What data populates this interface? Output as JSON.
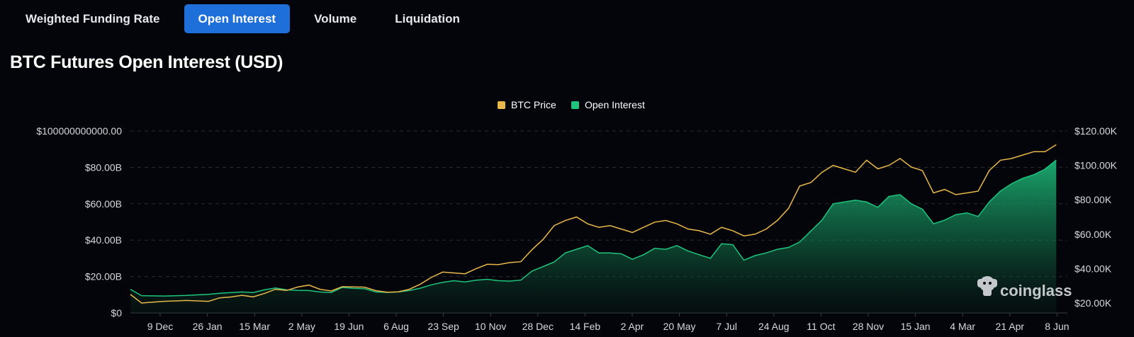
{
  "tabs": [
    {
      "label": "Weighted Funding Rate",
      "active": false
    },
    {
      "label": "Open Interest",
      "active": true
    },
    {
      "label": "Volume",
      "active": false
    },
    {
      "label": "Liquidation",
      "active": false
    }
  ],
  "watermark": "coinglass",
  "colors": {
    "btc_price": "#e8b84a",
    "open_interest": "#1fc47f",
    "background": "#04050a",
    "tab_active": "#1e6fd9"
  },
  "chart_data": {
    "type": "line",
    "title": "BTC Futures Open Interest (USD)",
    "legend": {
      "position": "top-center"
    },
    "grid": true,
    "x_ticks": [
      "9 Dec",
      "26 Jan",
      "15 Mar",
      "2 May",
      "19 Jun",
      "6 Aug",
      "23 Sep",
      "10 Nov",
      "28 Dec",
      "14 Feb",
      "2 Apr",
      "20 May",
      "7 Jul",
      "24 Aug",
      "11 Oct",
      "28 Nov",
      "15 Jan",
      "4 Mar",
      "21 Apr",
      "8 Jun"
    ],
    "y_left": {
      "ticks": [
        "$0",
        "$20.00B",
        "$40.00B",
        "$60.00B",
        "$80.00B",
        "$100000000000.00"
      ],
      "range": [
        0,
        100
      ]
    },
    "y_right": {
      "ticks": [
        "$20.00K",
        "$40.00K",
        "$60.00K",
        "$80.00K",
        "$100.00K",
        "$120.00K"
      ],
      "range": [
        20,
        120
      ]
    },
    "series": [
      {
        "name": "BTC Price",
        "axis": "right",
        "style": "line",
        "points": [
          [
            0,
            25
          ],
          [
            1,
            20
          ],
          [
            3,
            21
          ],
          [
            5,
            21.5
          ],
          [
            7,
            21
          ],
          [
            8,
            23
          ],
          [
            9,
            23.5
          ],
          [
            10,
            24.5
          ],
          [
            11,
            23.6
          ],
          [
            12,
            25.5
          ],
          [
            13,
            28
          ],
          [
            14,
            27.3
          ],
          [
            15,
            29.3
          ],
          [
            16,
            30.4
          ],
          [
            17,
            28
          ],
          [
            18,
            27
          ],
          [
            19,
            29.5
          ],
          [
            20,
            29.4
          ],
          [
            21,
            29.2
          ],
          [
            22,
            27.2
          ],
          [
            23,
            26.3
          ],
          [
            24,
            26.5
          ],
          [
            25,
            28
          ],
          [
            26,
            31
          ],
          [
            27,
            35
          ],
          [
            28,
            38
          ],
          [
            29,
            37.5
          ],
          [
            30,
            37
          ],
          [
            31,
            40
          ],
          [
            32,
            42.5
          ],
          [
            33,
            42.3
          ],
          [
            34,
            43.5
          ],
          [
            35,
            44
          ],
          [
            36,
            51
          ],
          [
            37,
            57
          ],
          [
            38,
            65
          ],
          [
            39,
            68
          ],
          [
            40,
            70
          ],
          [
            41,
            66
          ],
          [
            42,
            64
          ],
          [
            43,
            65
          ],
          [
            44,
            63
          ],
          [
            45,
            61
          ],
          [
            46,
            64
          ],
          [
            47,
            67
          ],
          [
            48,
            68
          ],
          [
            49,
            66
          ],
          [
            50,
            63
          ],
          [
            51,
            62
          ],
          [
            52,
            60
          ],
          [
            53,
            64
          ],
          [
            54,
            62
          ],
          [
            55,
            59
          ],
          [
            56,
            60
          ],
          [
            57,
            63
          ],
          [
            58,
            68
          ],
          [
            59,
            75
          ],
          [
            60,
            88
          ],
          [
            61,
            90
          ],
          [
            62,
            96
          ],
          [
            63,
            100
          ],
          [
            64,
            98
          ],
          [
            65,
            96
          ],
          [
            66,
            103
          ],
          [
            67,
            98
          ],
          [
            68,
            100
          ],
          [
            69,
            104
          ],
          [
            70,
            99
          ],
          [
            71,
            97
          ],
          [
            72,
            84
          ],
          [
            73,
            86
          ],
          [
            74,
            83
          ],
          [
            75,
            84
          ],
          [
            76,
            85
          ],
          [
            77,
            97
          ],
          [
            78,
            103
          ],
          [
            79,
            104
          ],
          [
            80,
            106
          ],
          [
            81,
            108
          ],
          [
            82,
            108
          ],
          [
            83,
            112
          ]
        ]
      },
      {
        "name": "Open Interest",
        "axis": "left",
        "style": "area",
        "points": [
          [
            0,
            13
          ],
          [
            1,
            9.5
          ],
          [
            3,
            9.3
          ],
          [
            5,
            9.6
          ],
          [
            7,
            10.2
          ],
          [
            8,
            10.8
          ],
          [
            9,
            11.2
          ],
          [
            10,
            11.5
          ],
          [
            11,
            11.2
          ],
          [
            12,
            12.7
          ],
          [
            13,
            13.7
          ],
          [
            14,
            12.7
          ],
          [
            15,
            12.4
          ],
          [
            16,
            12.3
          ],
          [
            17,
            11.5
          ],
          [
            18,
            11.2
          ],
          [
            19,
            14
          ],
          [
            20,
            13.5
          ],
          [
            21,
            13.3
          ],
          [
            22,
            11.5
          ],
          [
            23,
            11.3
          ],
          [
            24,
            11.5
          ],
          [
            25,
            12.3
          ],
          [
            26,
            13.6
          ],
          [
            27,
            15.5
          ],
          [
            28,
            16.8
          ],
          [
            29,
            17.7
          ],
          [
            30,
            17
          ],
          [
            31,
            18
          ],
          [
            32,
            18.5
          ],
          [
            33,
            17.7
          ],
          [
            34,
            17.5
          ],
          [
            35,
            18
          ],
          [
            36,
            23
          ],
          [
            37,
            25.5
          ],
          [
            38,
            28
          ],
          [
            39,
            33
          ],
          [
            40,
            35
          ],
          [
            41,
            37
          ],
          [
            42,
            33
          ],
          [
            43,
            33
          ],
          [
            44,
            32.5
          ],
          [
            45,
            29.5
          ],
          [
            46,
            32
          ],
          [
            47,
            35.5
          ],
          [
            48,
            35
          ],
          [
            49,
            37
          ],
          [
            50,
            34
          ],
          [
            51,
            32
          ],
          [
            52,
            30
          ],
          [
            53,
            38
          ],
          [
            54,
            37.5
          ],
          [
            55,
            29
          ],
          [
            56,
            31.5
          ],
          [
            57,
            33
          ],
          [
            58,
            35
          ],
          [
            59,
            36
          ],
          [
            60,
            39
          ],
          [
            61,
            45
          ],
          [
            62,
            51
          ],
          [
            63,
            60
          ],
          [
            64,
            61
          ],
          [
            65,
            62
          ],
          [
            66,
            61
          ],
          [
            67,
            58
          ],
          [
            68,
            64
          ],
          [
            69,
            65
          ],
          [
            70,
            60
          ],
          [
            71,
            57
          ],
          [
            72,
            49
          ],
          [
            73,
            51
          ],
          [
            74,
            54
          ],
          [
            75,
            55
          ],
          [
            76,
            53
          ],
          [
            77,
            61
          ],
          [
            78,
            67
          ],
          [
            79,
            71
          ],
          [
            80,
            74
          ],
          [
            81,
            76
          ],
          [
            82,
            79
          ],
          [
            83,
            84
          ]
        ]
      }
    ]
  }
}
